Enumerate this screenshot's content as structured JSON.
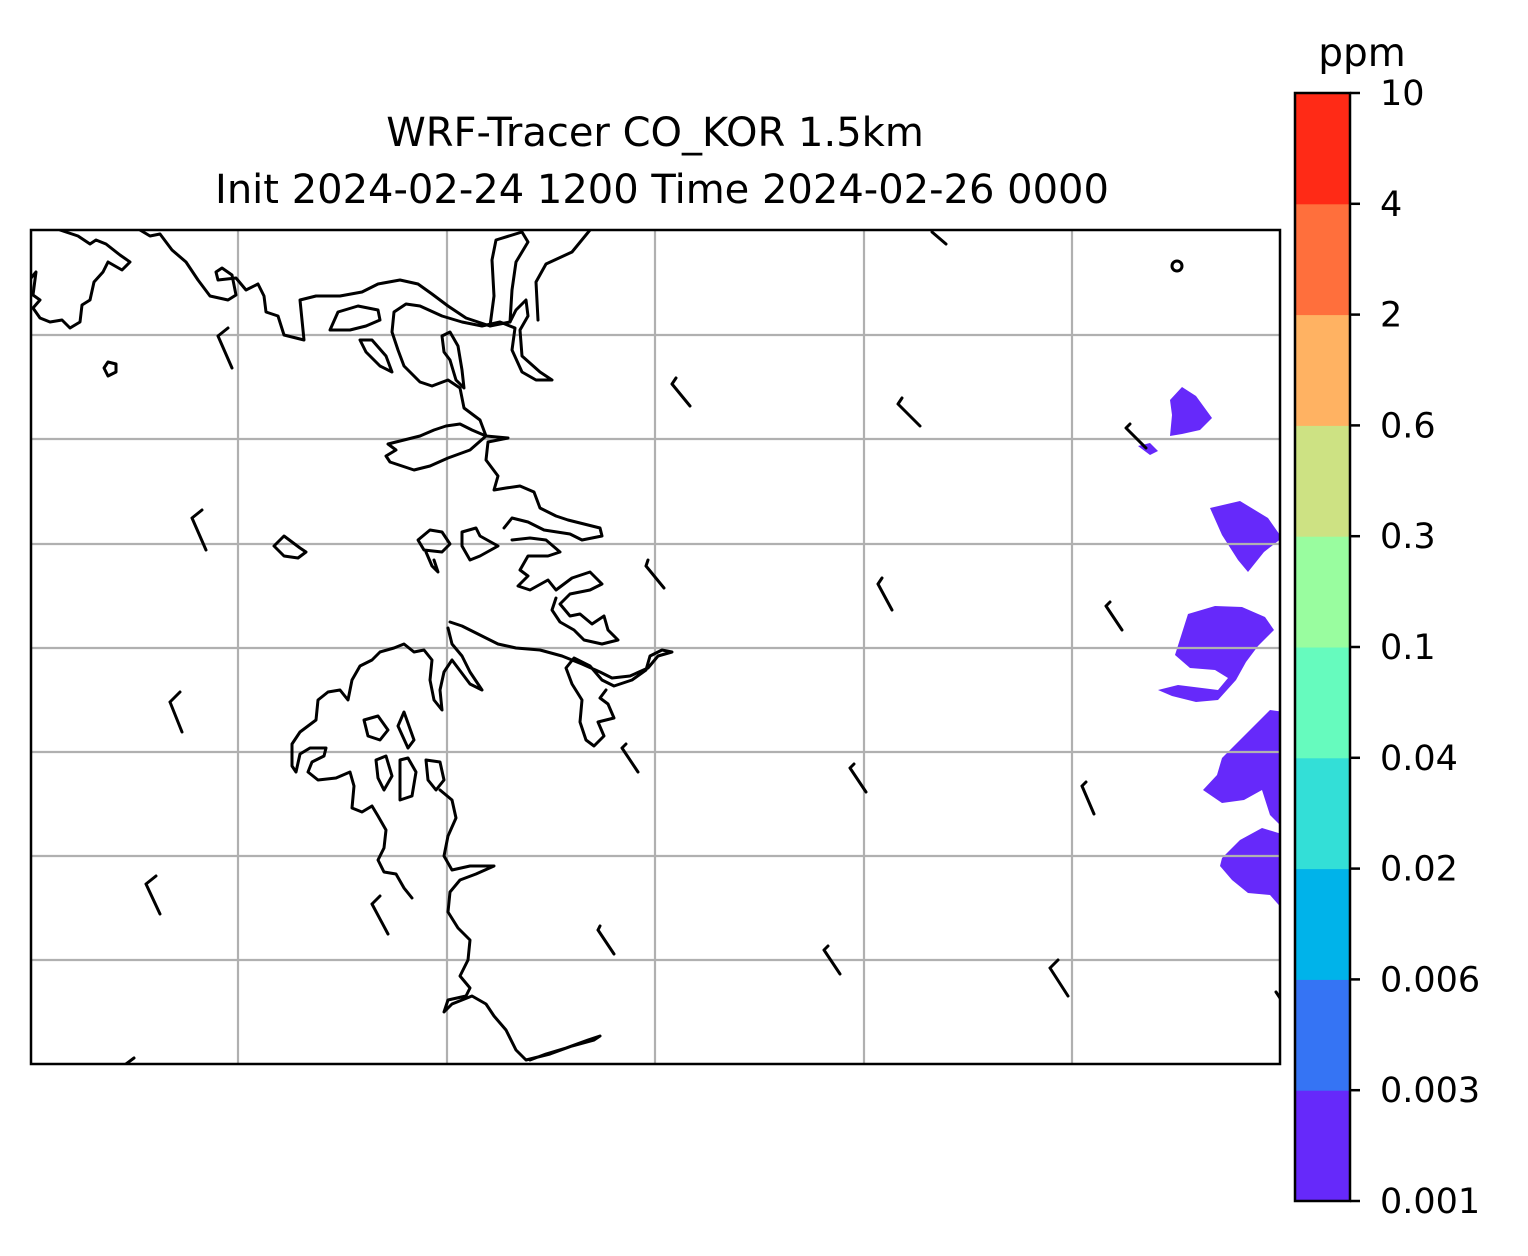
{
  "title": {
    "line1": "WRF-Tracer CO_KOR 1.5km",
    "line2": "Init 2024-02-24 1200 Time 2024-02-26 0000"
  },
  "colorbar": {
    "unit": "ppm",
    "levels": [
      "0.001",
      "0.003",
      "0.006",
      "0.02",
      "0.04",
      "0.1",
      "0.3",
      "0.6",
      "2",
      "4",
      "10"
    ],
    "colors": [
      "#6629fa",
      "#3574f4",
      "#00b3ea",
      "#33dfd7",
      "#66fbbe",
      "#99fd9f",
      "#cde283",
      "#ffb262",
      "#ff6f3c",
      "#ff2a16"
    ]
  },
  "map": {
    "gridlines": true,
    "features": [
      "coastline",
      "wind-barbs",
      "tracer-shading"
    ],
    "plume_color": "#6629fa"
  },
  "chart_data": {
    "type": "heatmap",
    "title": "WRF-Tracer CO_KOR 1.5km / Init 2024-02-24 1200 Time 2024-02-26 0000",
    "colorbar_unit": "ppm",
    "levels": [
      0.001,
      0.003,
      0.006,
      0.02,
      0.04,
      0.1,
      0.3,
      0.6,
      2,
      4,
      10
    ],
    "shaded_level_range": [
      0.001,
      0.003
    ],
    "plume_location": "east edge of domain"
  }
}
